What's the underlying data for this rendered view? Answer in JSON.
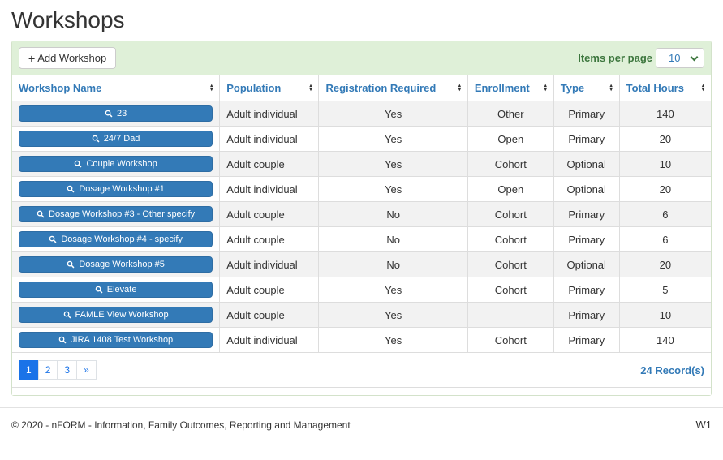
{
  "page": {
    "title": "Workshops"
  },
  "toolbar": {
    "add_button": {
      "icon": "plus-icon",
      "label": "Add Workshop"
    },
    "items_per_page": {
      "label": "Items per page",
      "value": "10",
      "options": [
        "10"
      ]
    }
  },
  "table": {
    "columns": [
      {
        "label": "Workshop Name"
      },
      {
        "label": "Population"
      },
      {
        "label": "Registration Required"
      },
      {
        "label": "Enrollment"
      },
      {
        "label": "Type"
      },
      {
        "label": "Total Hours"
      }
    ],
    "rows": [
      {
        "workshop_name": "23",
        "population": "Adult individual",
        "registration_required": "Yes",
        "enrollment": "Other",
        "type": "Primary",
        "total_hours": "140"
      },
      {
        "workshop_name": "24/7 Dad",
        "population": "Adult individual",
        "registration_required": "Yes",
        "enrollment": "Open",
        "type": "Primary",
        "total_hours": "20"
      },
      {
        "workshop_name": "Couple Workshop",
        "population": "Adult couple",
        "registration_required": "Yes",
        "enrollment": "Cohort",
        "type": "Optional",
        "total_hours": "10"
      },
      {
        "workshop_name": "Dosage Workshop #1",
        "population": "Adult individual",
        "registration_required": "Yes",
        "enrollment": "Open",
        "type": "Optional",
        "total_hours": "20"
      },
      {
        "workshop_name": "Dosage Workshop #3 - Other specify",
        "population": "Adult couple",
        "registration_required": "No",
        "enrollment": "Cohort",
        "type": "Primary",
        "total_hours": "6"
      },
      {
        "workshop_name": "Dosage Workshop #4 - specify",
        "population": "Adult couple",
        "registration_required": "No",
        "enrollment": "Cohort",
        "type": "Primary",
        "total_hours": "6"
      },
      {
        "workshop_name": "Dosage Workshop #5",
        "population": "Adult individual",
        "registration_required": "No",
        "enrollment": "Cohort",
        "type": "Optional",
        "total_hours": "20"
      },
      {
        "workshop_name": "Elevate",
        "population": "Adult couple",
        "registration_required": "Yes",
        "enrollment": "Cohort",
        "type": "Primary",
        "total_hours": "5"
      },
      {
        "workshop_name": "FAMLE View Workshop",
        "population": "Adult couple",
        "registration_required": "Yes",
        "enrollment": "",
        "type": "Primary",
        "total_hours": "10"
      },
      {
        "workshop_name": "JIRA 1408 Test Workshop",
        "population": "Adult individual",
        "registration_required": "Yes",
        "enrollment": "Cohort",
        "type": "Primary",
        "total_hours": "140"
      }
    ]
  },
  "pagination": {
    "pages": [
      "1",
      "2",
      "3",
      "»"
    ],
    "active": "1",
    "records": "24 Record(s)"
  },
  "footer": {
    "copyright": "© 2020 - nFORM - Information, Family Outcomes, Reporting and Management",
    "version": "W1"
  },
  "colors": {
    "accent_blue": "#337ab7",
    "toolbar_green": "#dff0d8",
    "success_text_green": "#3c763d",
    "active_page_blue": "#1a73e8",
    "row_stripe": "#f2f2f2"
  }
}
